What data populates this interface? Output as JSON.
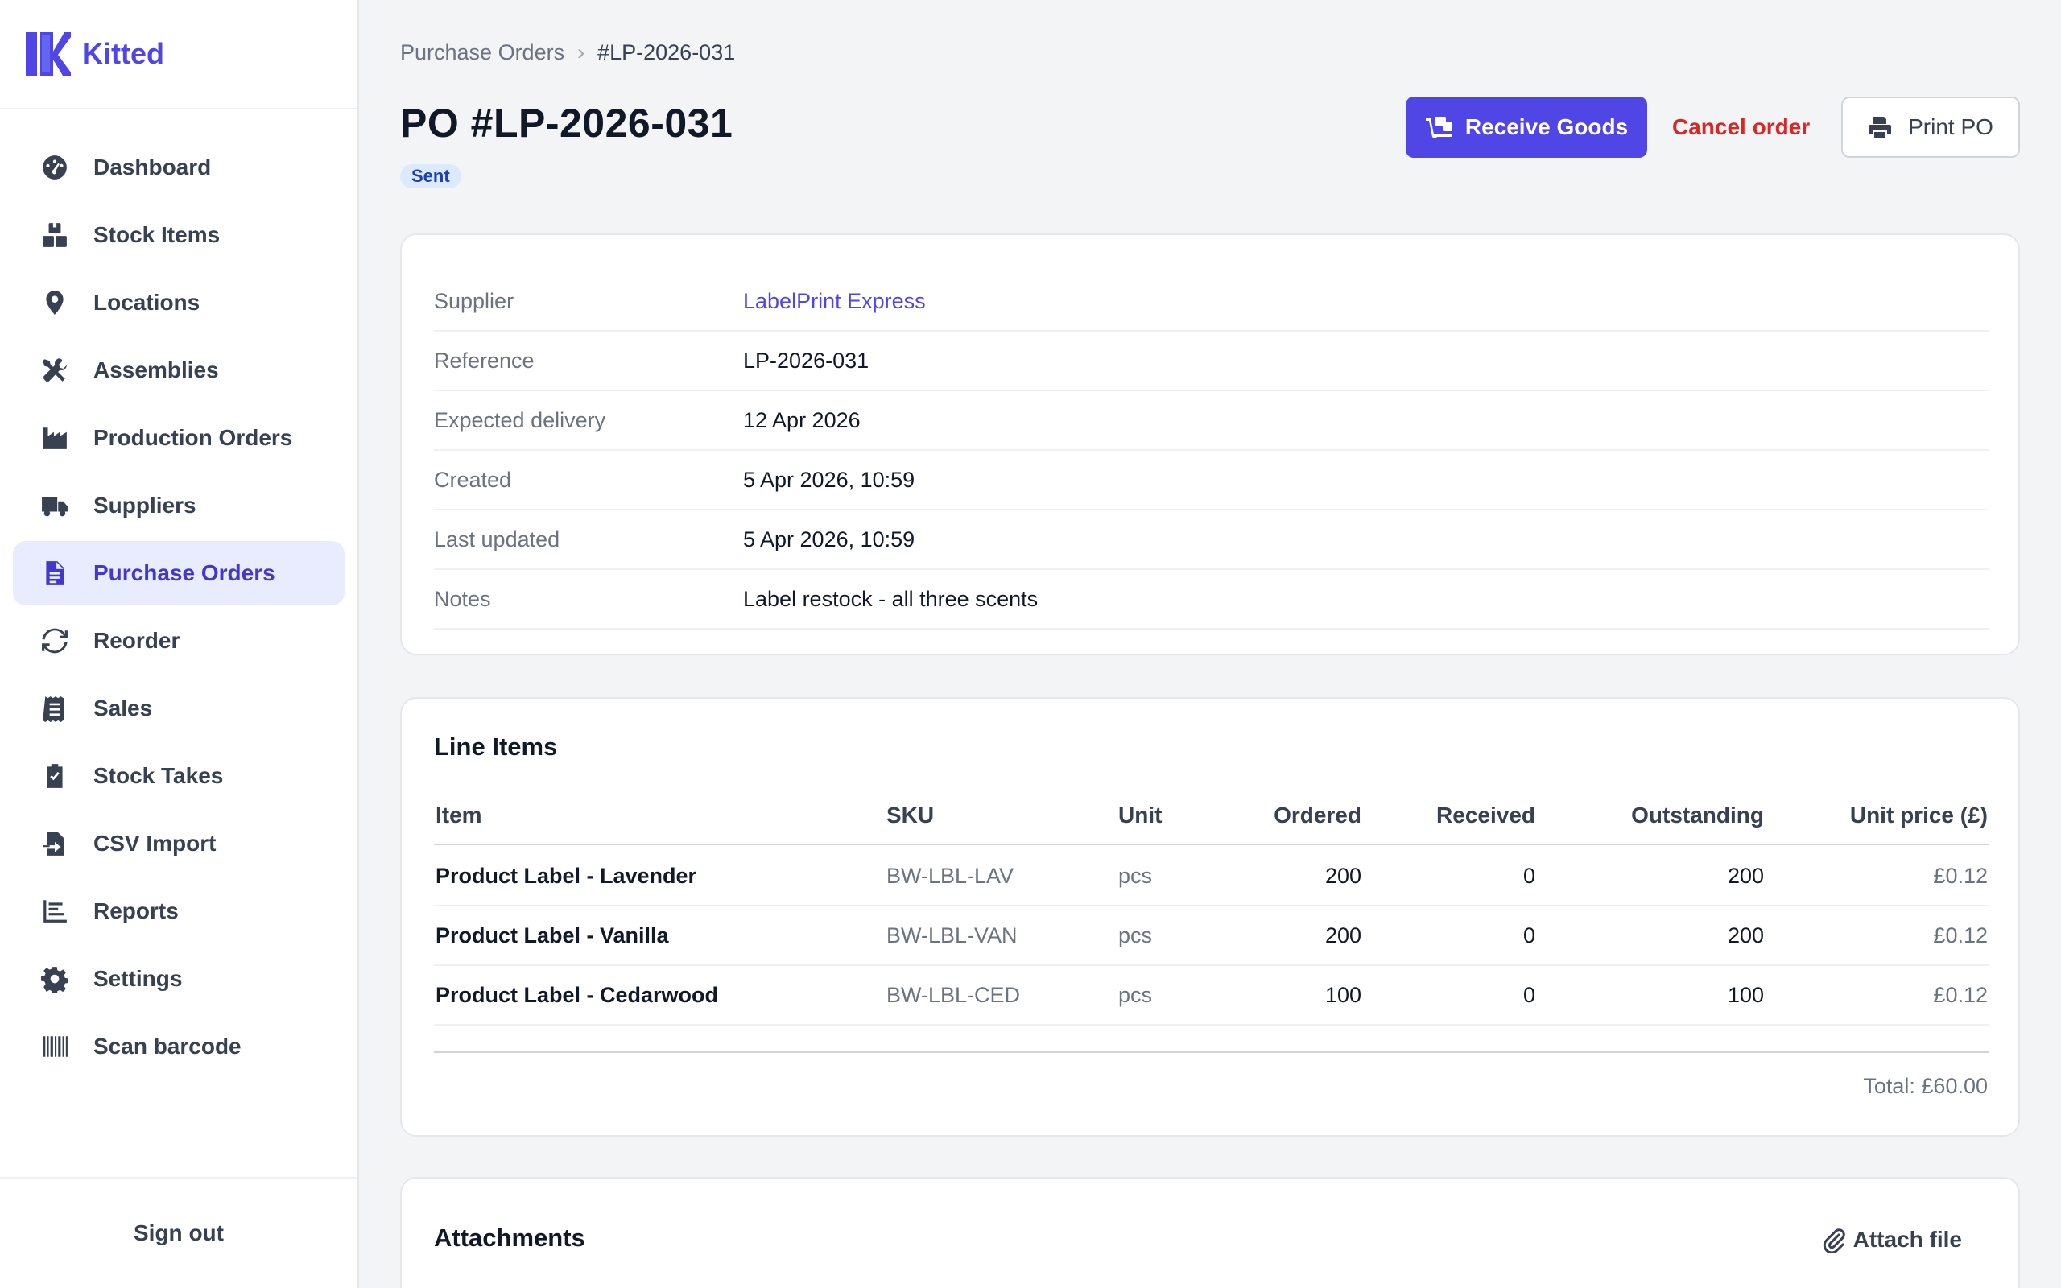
{
  "app": {
    "name": "Kitted",
    "accent": "#4f46e5"
  },
  "sidebar": {
    "items": [
      {
        "label": "Dashboard",
        "icon": "dashboard-gauge-icon"
      },
      {
        "label": "Stock Items",
        "icon": "boxes-icon"
      },
      {
        "label": "Locations",
        "icon": "map-pin-icon"
      },
      {
        "label": "Assemblies",
        "icon": "tools-icon"
      },
      {
        "label": "Production Orders",
        "icon": "factory-icon"
      },
      {
        "label": "Suppliers",
        "icon": "truck-icon"
      },
      {
        "label": "Purchase Orders",
        "icon": "document-icon",
        "active": true
      },
      {
        "label": "Reorder",
        "icon": "refresh-icon"
      },
      {
        "label": "Sales",
        "icon": "receipt-icon"
      },
      {
        "label": "Stock Takes",
        "icon": "clipboard-check-icon"
      },
      {
        "label": "CSV Import",
        "icon": "file-import-icon"
      },
      {
        "label": "Reports",
        "icon": "bar-chart-icon"
      },
      {
        "label": "Settings",
        "icon": "gear-icon"
      },
      {
        "label": "Scan barcode",
        "icon": "barcode-icon"
      }
    ],
    "signout": "Sign out"
  },
  "breadcrumb": {
    "parent": "Purchase Orders",
    "separator": "›",
    "current": "#LP-2026-031"
  },
  "header": {
    "title": "PO #LP-2026-031",
    "status": "Sent",
    "receive_label": "Receive Goods",
    "cancel_label": "Cancel order",
    "print_label": "Print PO"
  },
  "details": [
    {
      "label": "Supplier",
      "value": "LabelPrint Express",
      "link": true
    },
    {
      "label": "Reference",
      "value": "LP-2026-031"
    },
    {
      "label": "Expected delivery",
      "value": "12 Apr 2026"
    },
    {
      "label": "Created",
      "value": "5 Apr 2026, 10:59"
    },
    {
      "label": "Last updated",
      "value": "5 Apr 2026, 10:59"
    },
    {
      "label": "Notes",
      "value": "Label restock - all three scents"
    }
  ],
  "line_items": {
    "title": "Line Items",
    "columns": {
      "item": "Item",
      "sku": "SKU",
      "unit": "Unit",
      "ordered": "Ordered",
      "received": "Received",
      "outstanding": "Outstanding",
      "price": "Unit price (£)"
    },
    "rows": [
      {
        "item": "Product Label - Lavender",
        "sku": "BW-LBL-LAV",
        "unit": "pcs",
        "ordered": "200",
        "received": "0",
        "outstanding": "200",
        "price": "£0.12"
      },
      {
        "item": "Product Label - Vanilla",
        "sku": "BW-LBL-VAN",
        "unit": "pcs",
        "ordered": "200",
        "received": "0",
        "outstanding": "200",
        "price": "£0.12"
      },
      {
        "item": "Product Label - Cedarwood",
        "sku": "BW-LBL-CED",
        "unit": "pcs",
        "ordered": "100",
        "received": "0",
        "outstanding": "100",
        "price": "£0.12"
      }
    ],
    "total": "Total: £60.00"
  },
  "attachments": {
    "title": "Attachments",
    "attach_label": "Attach file"
  }
}
